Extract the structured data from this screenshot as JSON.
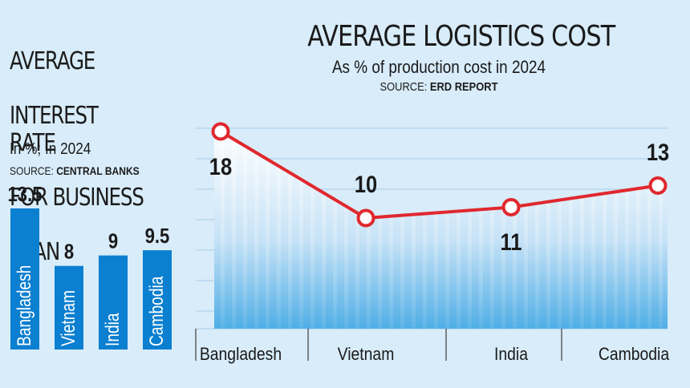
{
  "chart_data": [
    {
      "type": "bar",
      "title_lines": [
        "AVERAGE",
        "INTEREST RATE",
        "FOR BUSINESS",
        "LOAN"
      ],
      "subtitle": "In %; In 2024",
      "source_label": "SOURCE:",
      "source_name": "CENTRAL BANKS",
      "categories": [
        "Bangladesh",
        "Vietnam",
        "India",
        "Cambodia"
      ],
      "values": [
        13.5,
        8,
        9,
        9.5
      ],
      "value_labels": [
        "13.5",
        "8",
        "9",
        "9.5"
      ],
      "ylim": [
        0,
        15
      ],
      "bar_color": "#0b7fd0"
    },
    {
      "type": "line",
      "title": "AVERAGE LOGISTICS COST",
      "subtitle": "As % of production cost in 2024",
      "source_label": "SOURCE:",
      "source_name": "ERD REPORT",
      "categories": [
        "Bangladesh",
        "Vietnam",
        "India",
        "Cambodia"
      ],
      "values": [
        18,
        10,
        11,
        13
      ],
      "value_labels": [
        "18",
        "10",
        "11",
        "13"
      ],
      "line_color": "#e0282e",
      "grid": true
    }
  ],
  "colors": {
    "background": "#d8ecf9",
    "gridline": "#a9cde9",
    "area_light": "#c6e2f6",
    "area_dark": "#4faee6"
  }
}
